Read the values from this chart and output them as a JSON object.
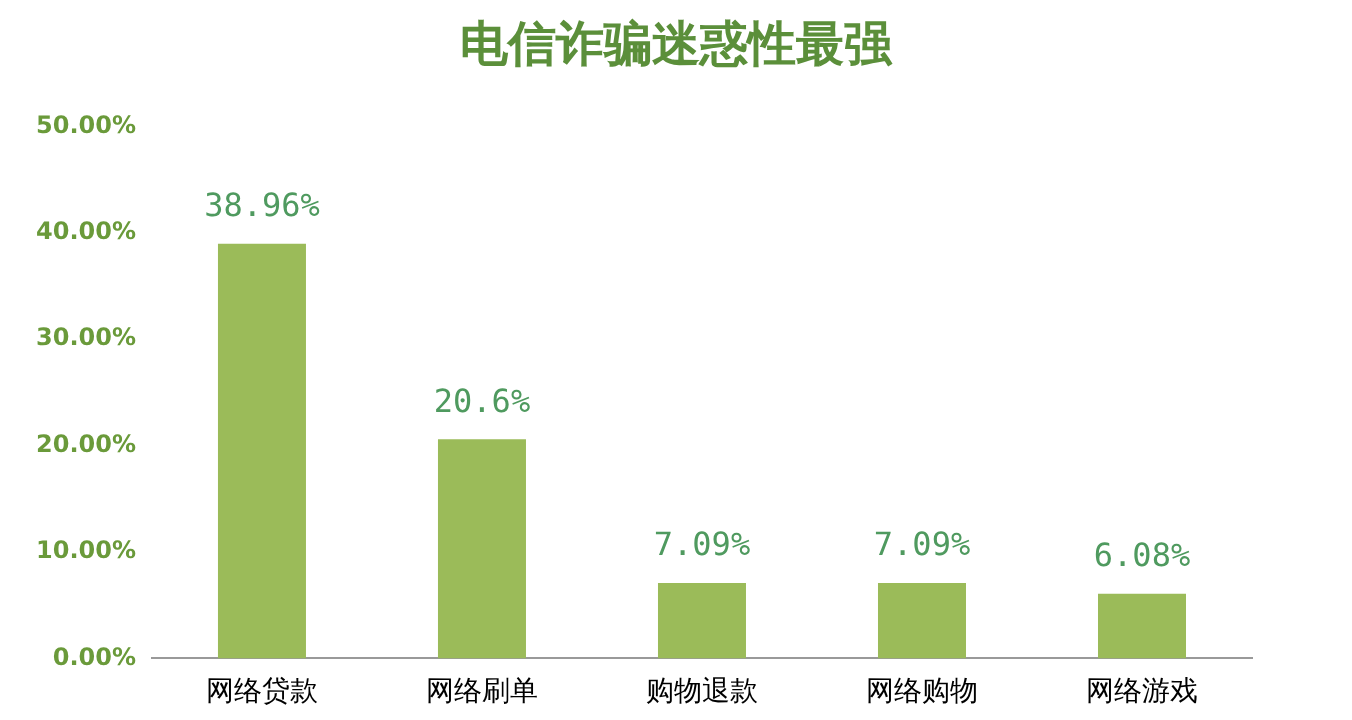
{
  "chart_data": {
    "type": "bar",
    "title": "电信诈骗迷惑性最强",
    "categories": [
      "网络贷款",
      "网络刷单",
      "购物退款",
      "网络购物",
      "网络游戏"
    ],
    "values": [
      38.96,
      20.6,
      7.09,
      7.09,
      6.08
    ],
    "color": "#9bbb59",
    "value_labels": [
      "38.96%",
      "20.6%",
      "7.09%",
      "7.09%",
      "6.08%"
    ],
    "ylim": [
      0,
      50
    ],
    "yticks": [
      {
        "value": 0,
        "label": "0.00%"
      },
      {
        "value": 10,
        "label": "10.00%"
      },
      {
        "value": 20,
        "label": "20.00%"
      },
      {
        "value": 30,
        "label": "30.00%"
      },
      {
        "value": 40,
        "label": "40.00%"
      },
      {
        "value": 50,
        "label": "50.00%"
      }
    ],
    "grid": false,
    "legend": false
  }
}
